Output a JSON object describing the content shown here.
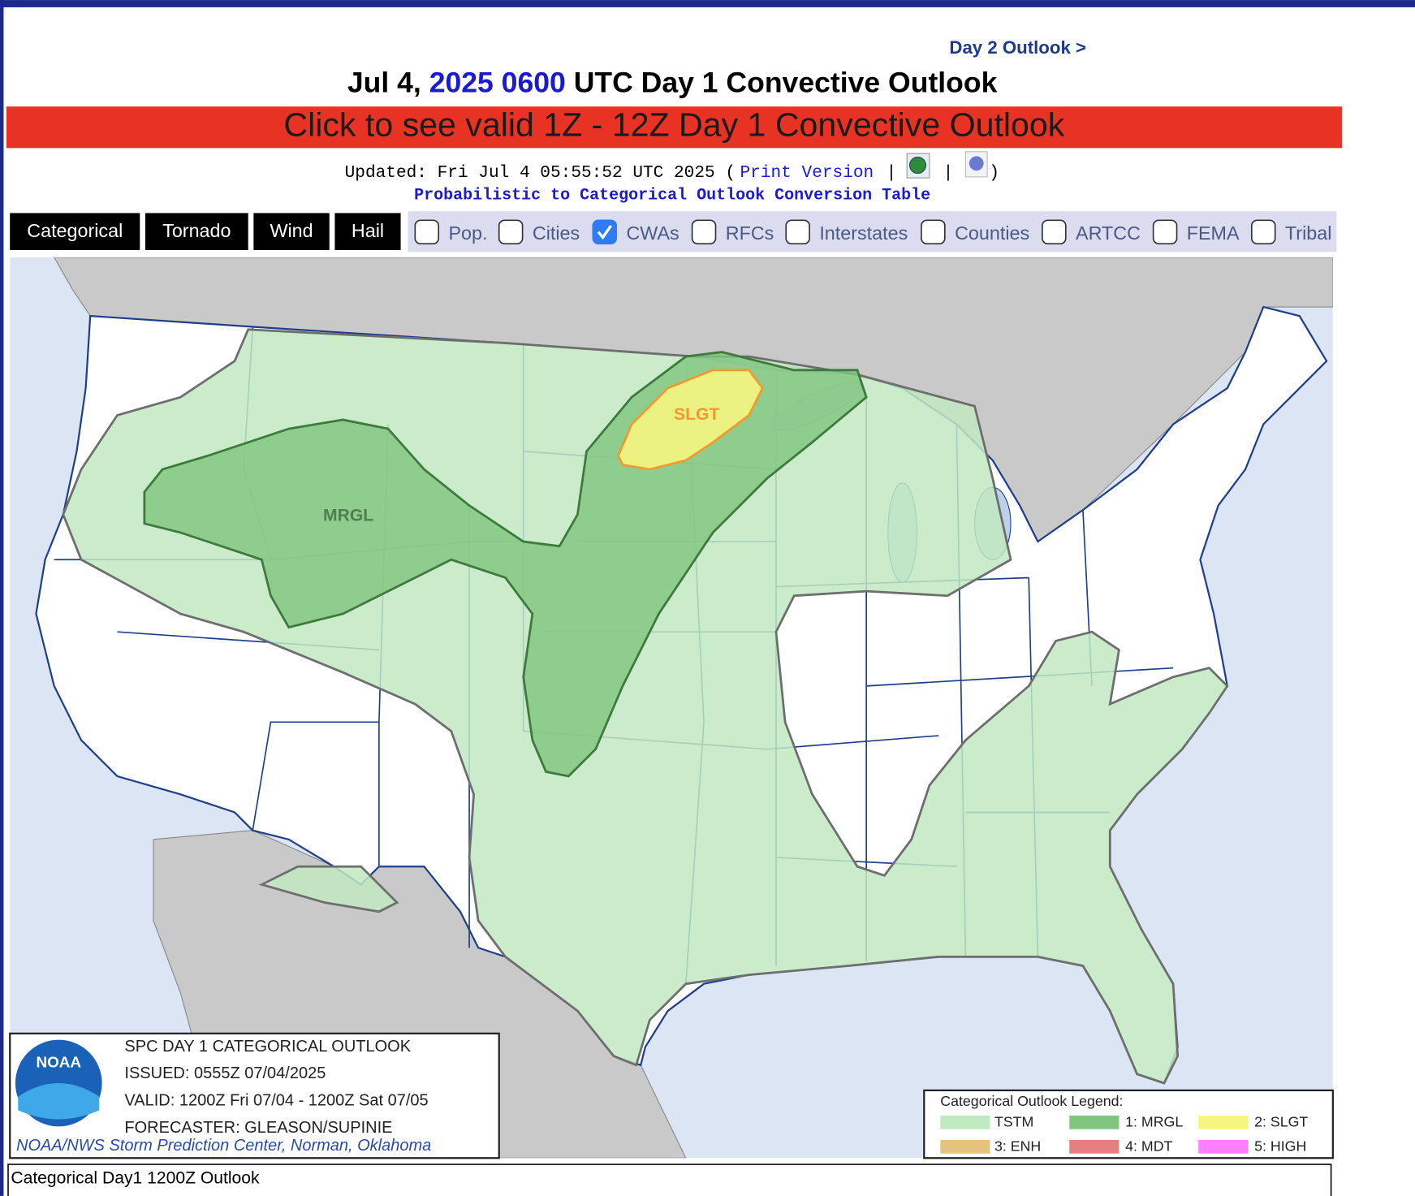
{
  "nav": {
    "next_day": "Day 2 Outlook >"
  },
  "title": {
    "date": "Jul 4,",
    "time": "2025 0600",
    "rest": "UTC Day 1 Convective Outlook"
  },
  "banner": "Click to see valid 1Z - 12Z Day 1 Convective Outlook",
  "updated": {
    "stamp": "Updated: Fri Jul 4 05:55:52 UTC 2025 (",
    "print": "Print Version",
    "sep": "|",
    "close": ")"
  },
  "conversion_link": "Probabilistic to Categorical Outlook Conversion Table",
  "tabs": [
    "Categorical",
    "Tornado",
    "Wind",
    "Hail"
  ],
  "overlays": [
    {
      "label": "Pop.",
      "checked": false
    },
    {
      "label": "Cities",
      "checked": false
    },
    {
      "label": "CWAs",
      "checked": true
    },
    {
      "label": "RFCs",
      "checked": false
    },
    {
      "label": "Interstates",
      "checked": false
    },
    {
      "label": "Counties",
      "checked": false
    },
    {
      "label": "ARTCC",
      "checked": false
    },
    {
      "label": "FEMA",
      "checked": false
    },
    {
      "label": "Tribal",
      "checked": false
    }
  ],
  "map_labels": {
    "mrgl": "MRGL",
    "slgt": "SLGT"
  },
  "info": {
    "logo": "NOAA",
    "lines": [
      "SPC DAY 1 CATEGORICAL OUTLOOK",
      "ISSUED: 0555Z 07/04/2025",
      "VALID: 1200Z Fri 07/04 - 1200Z Sat 07/05",
      "FORECASTER: GLEASON/SUPINIE"
    ],
    "credit": "NOAA/NWS Storm Prediction Center, Norman, Oklahoma"
  },
  "legend": {
    "title": "Categorical Outlook Legend:",
    "items": [
      {
        "label": "TSTM",
        "color": "#c1e9c1"
      },
      {
        "label": "1: MRGL",
        "color": "#7fc57f"
      },
      {
        "label": "2: SLGT",
        "color": "#f6f67f"
      },
      {
        "label": "3: ENH",
        "color": "#e6c27f"
      },
      {
        "label": "4: MDT",
        "color": "#e67f7f"
      },
      {
        "label": "5: HIGH",
        "color": "#ff7fff"
      }
    ]
  },
  "caption": "Categorical Day1 1200Z Outlook"
}
